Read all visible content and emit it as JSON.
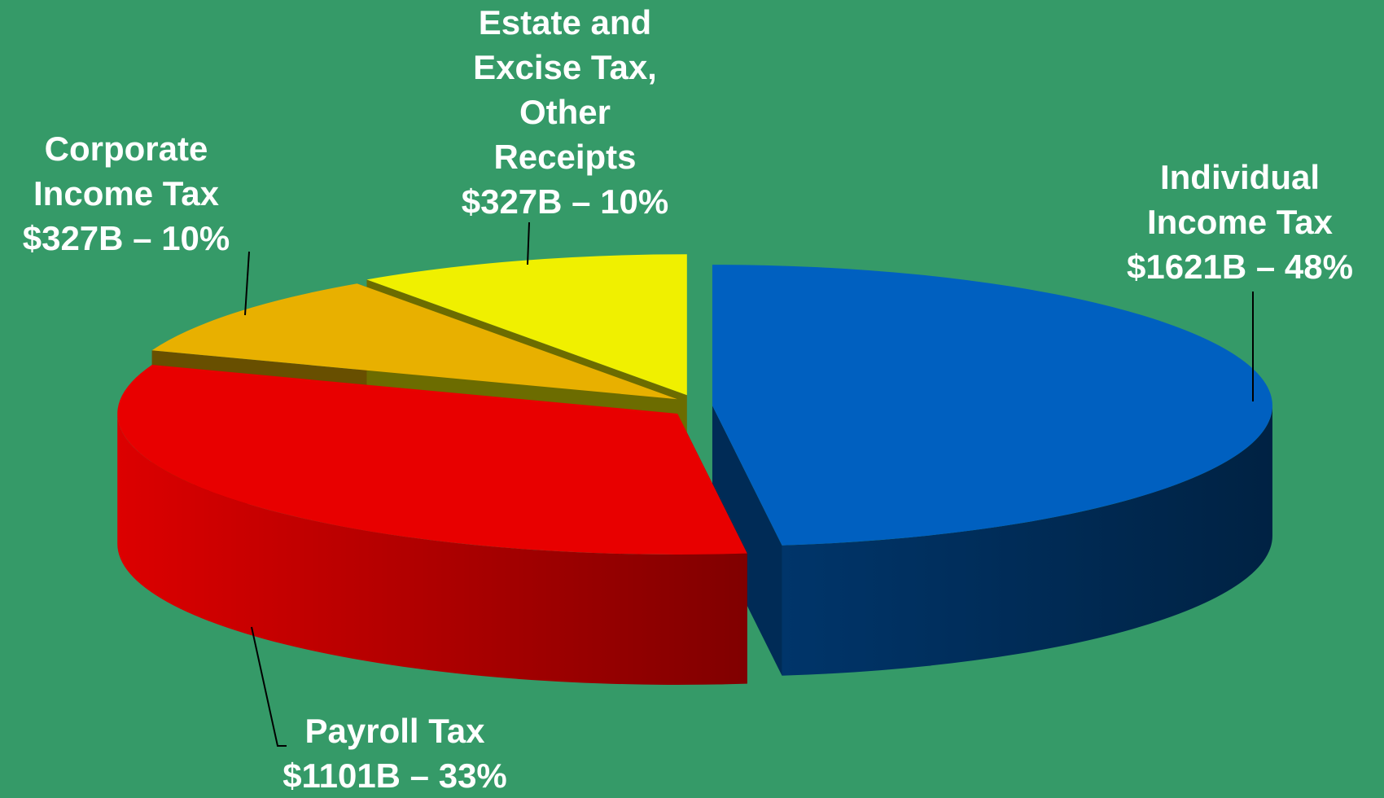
{
  "chart_data": {
    "type": "pie3d",
    "categories": [
      "Individual Income Tax",
      "Payroll Tax",
      "Corporate Income Tax",
      "Estate and Excise Tax, Other Receipts"
    ],
    "values": [
      1621,
      1101,
      327,
      327
    ],
    "value_labels": [
      "$1621B – 48%",
      "$1101B – 33%",
      "$327B – 10%",
      "$327B – 10%"
    ],
    "colors": [
      "#0060c0",
      "#e80000",
      "#e8b000",
      "#f0f000"
    ]
  }
}
